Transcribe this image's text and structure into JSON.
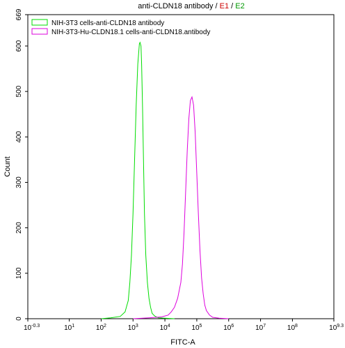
{
  "chart_data": {
    "type": "line",
    "title_parts": [
      {
        "text": "anti-CLDN18 antibody",
        "color": "#000000"
      },
      {
        "text": " / ",
        "color": "#000000"
      },
      {
        "text": "E1",
        "color": "#cc0000"
      },
      {
        "text": " / ",
        "color": "#000000"
      },
      {
        "text": "E2",
        "color": "#009900"
      }
    ],
    "xlabel": "FITC-A",
    "ylabel": "Count",
    "xscale": "log",
    "xlim": [
      -0.3,
      9.3
    ],
    "ylim": [
      0,
      669
    ],
    "grid": false,
    "legend_position": "top-left",
    "x_ticks": [
      {
        "exp": -0.3,
        "base": "10",
        "sup": "-0.3"
      },
      {
        "exp": 1,
        "base": "10",
        "sup": "1"
      },
      {
        "exp": 2,
        "base": "10",
        "sup": "2"
      },
      {
        "exp": 3,
        "base": "10",
        "sup": "3"
      },
      {
        "exp": 4,
        "base": "10",
        "sup": "4"
      },
      {
        "exp": 5,
        "base": "10",
        "sup": "5"
      },
      {
        "exp": 6,
        "base": "10",
        "sup": "6"
      },
      {
        "exp": 7,
        "base": "10",
        "sup": "7"
      },
      {
        "exp": 8,
        "base": "10",
        "sup": "8"
      },
      {
        "exp": 9.3,
        "base": "10",
        "sup": "9.3"
      }
    ],
    "y_ticks": [
      {
        "value": 0,
        "label": "0"
      },
      {
        "value": 100,
        "label": "100"
      },
      {
        "value": 200,
        "label": "200"
      },
      {
        "value": 300,
        "label": "300"
      },
      {
        "value": 400,
        "label": "400"
      },
      {
        "value": 500,
        "label": "500"
      },
      {
        "value": 600,
        "label": "600"
      },
      {
        "value": 669,
        "label": "669"
      }
    ],
    "series": [
      {
        "name": "NIH-3T3 cells-anti-CLDN18 antibody",
        "color": "#00dd00",
        "x_log10": [
          2.0,
          2.3,
          2.6,
          2.75,
          2.85,
          2.9,
          2.95,
          3.0,
          3.05,
          3.1,
          3.15,
          3.2,
          3.22,
          3.25,
          3.27,
          3.3,
          3.33,
          3.36,
          3.4,
          3.45,
          3.5,
          3.55,
          3.6,
          3.65,
          3.7,
          3.8,
          4.0,
          4.3
        ],
        "y": [
          0,
          2,
          5,
          15,
          40,
          80,
          140,
          230,
          350,
          470,
          560,
          605,
          608,
          600,
          560,
          460,
          340,
          230,
          140,
          80,
          45,
          25,
          12,
          8,
          5,
          2,
          1,
          0
        ]
      },
      {
        "name": "NIH-3T3-Hu-CLDN18.1 cells-anti-CLDN18.antibody",
        "color": "#dd00dd",
        "x_log10": [
          3.0,
          3.5,
          3.9,
          4.1,
          4.2,
          4.3,
          4.4,
          4.5,
          4.55,
          4.6,
          4.65,
          4.7,
          4.75,
          4.8,
          4.85,
          4.9,
          4.95,
          5.0,
          5.05,
          5.1,
          5.15,
          5.2,
          5.25,
          5.3,
          5.4,
          5.5,
          5.7,
          6.0
        ],
        "y": [
          0,
          2,
          4,
          8,
          15,
          25,
          45,
          80,
          120,
          190,
          280,
          370,
          440,
          480,
          488,
          470,
          410,
          320,
          230,
          150,
          90,
          55,
          30,
          18,
          8,
          3,
          1,
          0
        ]
      }
    ]
  }
}
